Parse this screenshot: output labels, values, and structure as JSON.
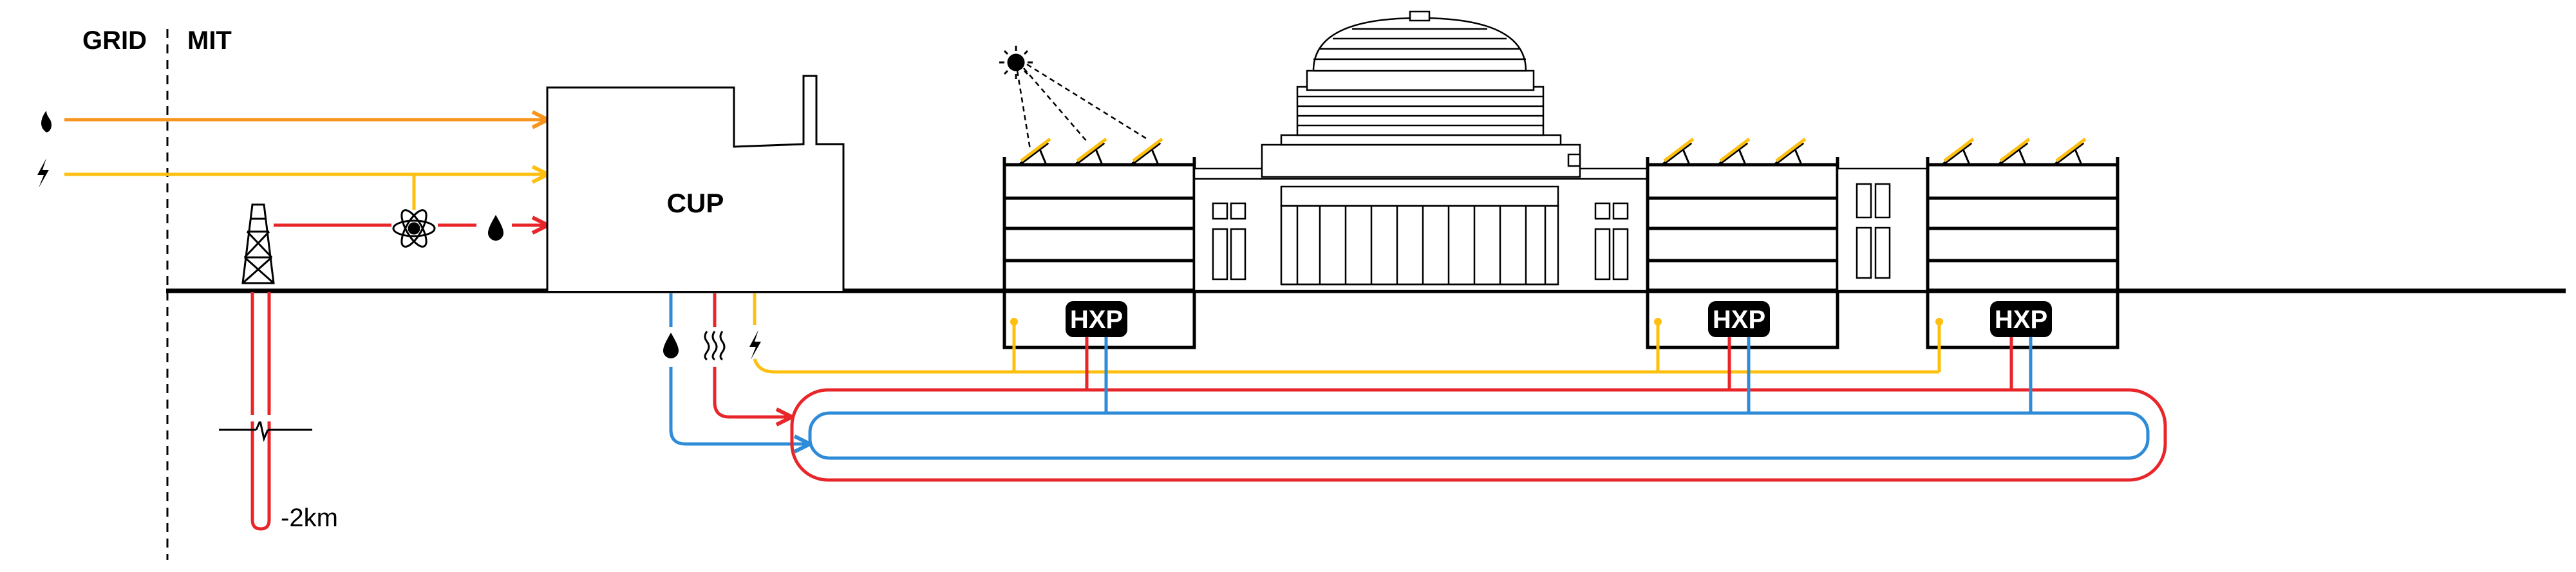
{
  "labels": {
    "grid": "GRID",
    "mit": "MIT",
    "cup": "CUP",
    "hxp": "HXP",
    "depth": "-2km"
  },
  "colors": {
    "gas": "#F7941D",
    "electric": "#FDC010",
    "hot": "#E8262A",
    "cold": "#2E8BD8",
    "ink": "#000000"
  },
  "icons": [
    "flame-icon",
    "lightning-icon",
    "atom-icon",
    "water-drop-icon",
    "heat-waves-icon",
    "sun-icon",
    "solar-panel-icon",
    "drill-tower-icon"
  ]
}
